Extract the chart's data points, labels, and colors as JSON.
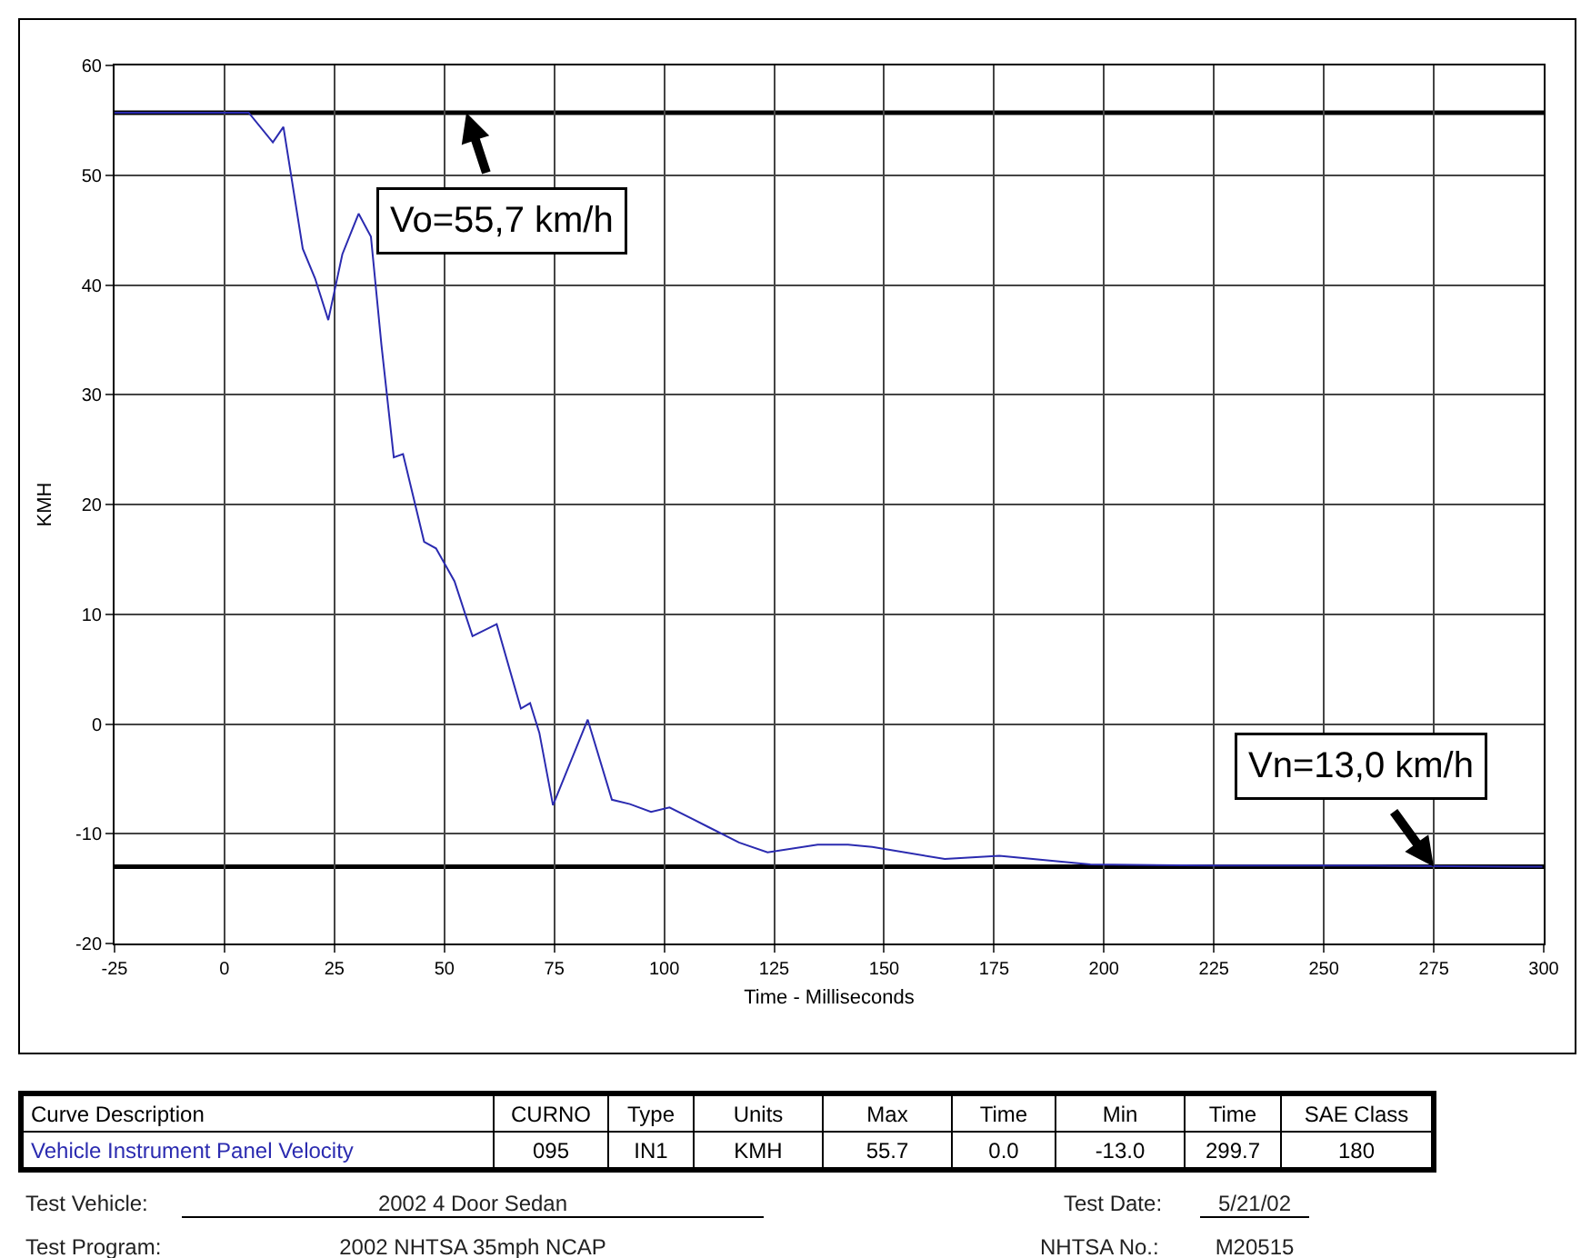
{
  "chart_data": {
    "type": "line",
    "xlabel": "Time - Milliseconds",
    "ylabel": "KMH",
    "x": [
      -25,
      0,
      5.5,
      11,
      13.4,
      17.8,
      20.6,
      23.6,
      26.8,
      30.5,
      33.3,
      35.7,
      38.5,
      40.6,
      45.4,
      48.1,
      52.3,
      56.4,
      61.9,
      67.4,
      69.5,
      71.6,
      74.7,
      82.6,
      88.1,
      92.2,
      97,
      101.2,
      110.1,
      117,
      123.5,
      134.9,
      141.8,
      147.3,
      163.8,
      176.2,
      196.9,
      224.5,
      260,
      293.2,
      299.7
    ],
    "series": [
      {
        "name": "Vehicle Instrument Panel Velocity",
        "color": "#2b2bb0",
        "values": [
          55.7,
          55.7,
          55.7,
          53.0,
          54.4,
          43.3,
          40.6,
          36.8,
          42.8,
          46.5,
          44.4,
          34.5,
          24.3,
          24.6,
          16.6,
          16.0,
          13.0,
          8.0,
          9.1,
          1.4,
          1.9,
          -0.8,
          -7.4,
          0.4,
          -6.9,
          -7.3,
          -8.0,
          -7.6,
          -9.4,
          -10.8,
          -11.7,
          -11.0,
          -11.0,
          -11.2,
          -12.3,
          -12.0,
          -12.8,
          -12.9,
          -12.9,
          -13.0,
          -13.0
        ]
      }
    ],
    "xlim": [
      -25,
      300
    ],
    "xticks": [
      -25,
      0,
      25,
      50,
      75,
      100,
      125,
      150,
      175,
      200,
      225,
      250,
      275,
      300
    ],
    "ylim": [
      -20,
      60
    ],
    "yticks": [
      -20,
      -10,
      0,
      10,
      20,
      30,
      40,
      50,
      60
    ],
    "ref_lines": [
      {
        "axis": "y",
        "value": 55.7,
        "color": "#000000"
      },
      {
        "axis": "y",
        "value": -13.0,
        "color": "#000000"
      }
    ],
    "grid": true,
    "legend": false,
    "marker": "none",
    "line_style": "solid",
    "annotations": [
      {
        "text": "Vo=55,7 km/h",
        "x": 55,
        "y": 55.7
      },
      {
        "text": "Vn=13,0 km/h",
        "x": 275,
        "y": -13.0
      },
      "Curve Description",
      "CURNO",
      "Type",
      "Units",
      "Max",
      "Time",
      "Min",
      "Time",
      "SAE Class",
      "095",
      "IN1",
      "KMH",
      "55.7",
      "0.0",
      "-13.0",
      "299.7",
      "180",
      "Test Vehicle:",
      "2002 4 Door Sedan",
      "Test Program:",
      "2002 NHTSA 35mph NCAP",
      "Test Date:",
      "5/21/02",
      "NHTSA No.:",
      "M20515"
    ]
  }
}
